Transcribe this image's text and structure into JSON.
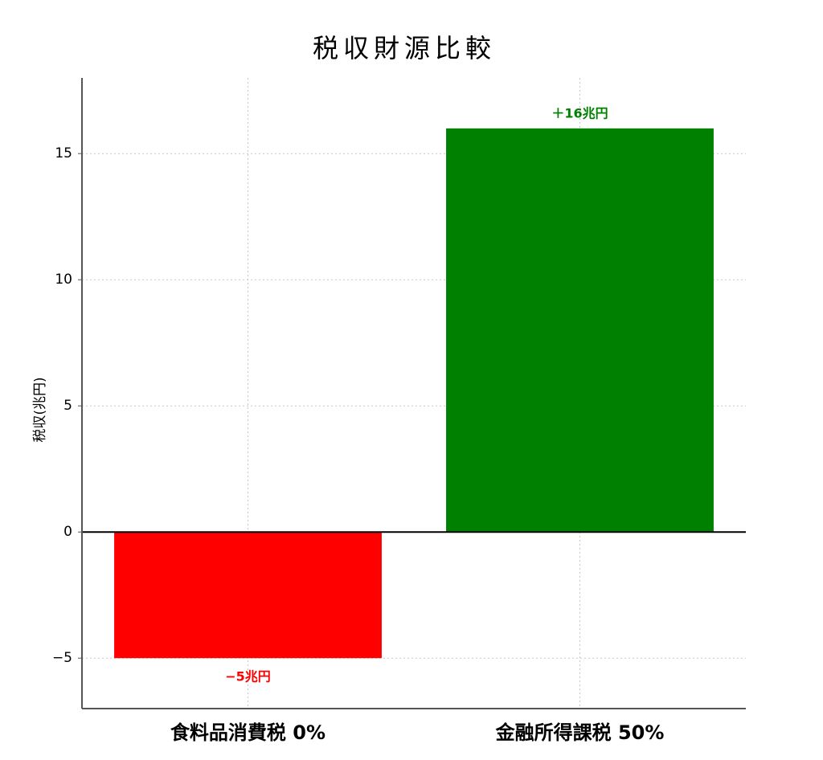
{
  "chart_data": {
    "type": "bar",
    "title": "税収財源比較",
    "y_label": "税収(兆円)",
    "categories": [
      "食料品消費税 0%",
      "金融所得課税 50%"
    ],
    "values": [
      -5,
      16
    ],
    "value_labels": [
      "−5兆円",
      "＋16兆円"
    ],
    "colors": [
      "#ff0000",
      "#008000"
    ],
    "ylim": [
      -7,
      18
    ],
    "yticks": [
      {
        "value": -5,
        "label": "−5"
      },
      0,
      5,
      10,
      15
    ],
    "grid": true
  }
}
